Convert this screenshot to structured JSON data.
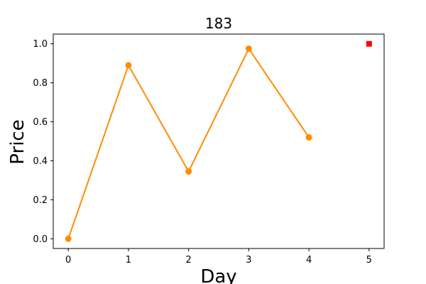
{
  "chart_data": {
    "type": "line",
    "title": "183",
    "xlabel": "Day",
    "ylabel": "Price",
    "xlim": [
      -0.25,
      5.25
    ],
    "ylim": [
      -0.05,
      1.05
    ],
    "x_ticks": [
      "0",
      "1",
      "2",
      "3",
      "4",
      "5"
    ],
    "y_ticks": [
      "0.0",
      "0.2",
      "0.4",
      "0.6",
      "0.8",
      "1.0"
    ],
    "grid": false,
    "series": [
      {
        "color": "#ff8c00",
        "marker": "circle",
        "points": [
          {
            "x": 0,
            "y": 0.0
          },
          {
            "x": 1,
            "y": 0.89
          },
          {
            "x": 2,
            "y": 0.345
          },
          {
            "x": 3,
            "y": 0.975
          },
          {
            "x": 4,
            "y": 0.52
          }
        ]
      },
      {
        "color": "#ff0000",
        "marker": "square",
        "points": [
          {
            "x": 5,
            "y": 1.0
          }
        ]
      }
    ]
  }
}
